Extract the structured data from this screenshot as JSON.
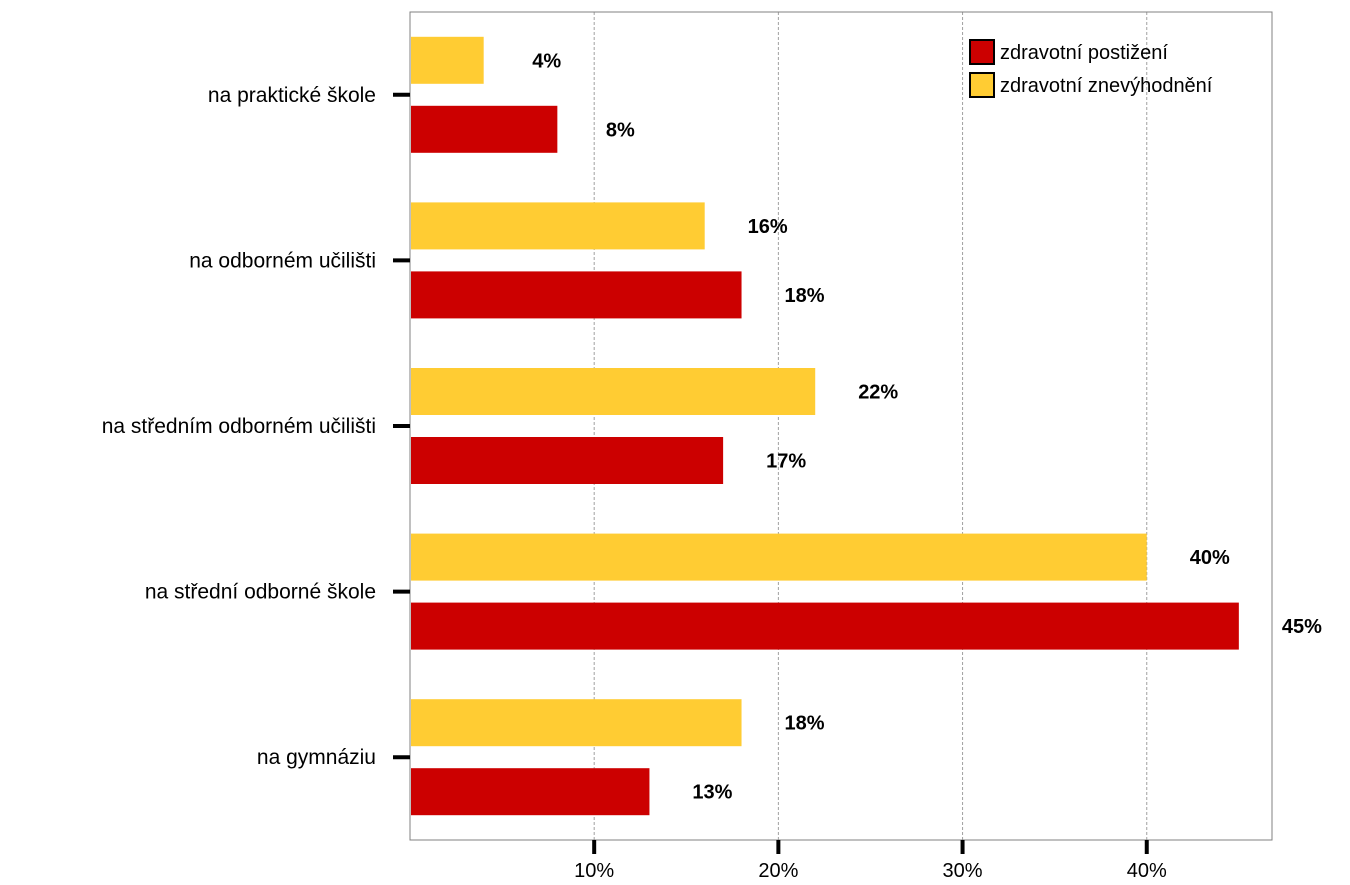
{
  "chart_data": {
    "type": "bar",
    "orientation": "horizontal",
    "categories": [
      "na praktické škole",
      "na odborném učilišti",
      "na středním odborném učilišti",
      "na střední odborné škole",
      "na gymnáziu"
    ],
    "series": [
      {
        "name": "zdravotní znevýhodnění",
        "color": "#FFCC33",
        "values": [
          4,
          16,
          22,
          40,
          18
        ],
        "labels": [
          "4%",
          "16%",
          "22%",
          "40%",
          "18%"
        ]
      },
      {
        "name": "zdravotní postižení",
        "color": "#CC0000",
        "values": [
          8,
          18,
          17,
          45,
          13
        ],
        "labels": [
          "8%",
          "18%",
          "17%",
          "45%",
          "13%"
        ]
      }
    ],
    "legend_order": [
      "zdravotní postižení",
      "zdravotní znevýhodnění"
    ],
    "xticks": [
      10,
      20,
      30,
      40
    ],
    "xtick_labels": [
      "10%",
      "20%",
      "30%",
      "40%"
    ],
    "xlim": [
      0,
      46.8
    ],
    "grid": "vertical dashed",
    "legend_position": "top-right"
  }
}
